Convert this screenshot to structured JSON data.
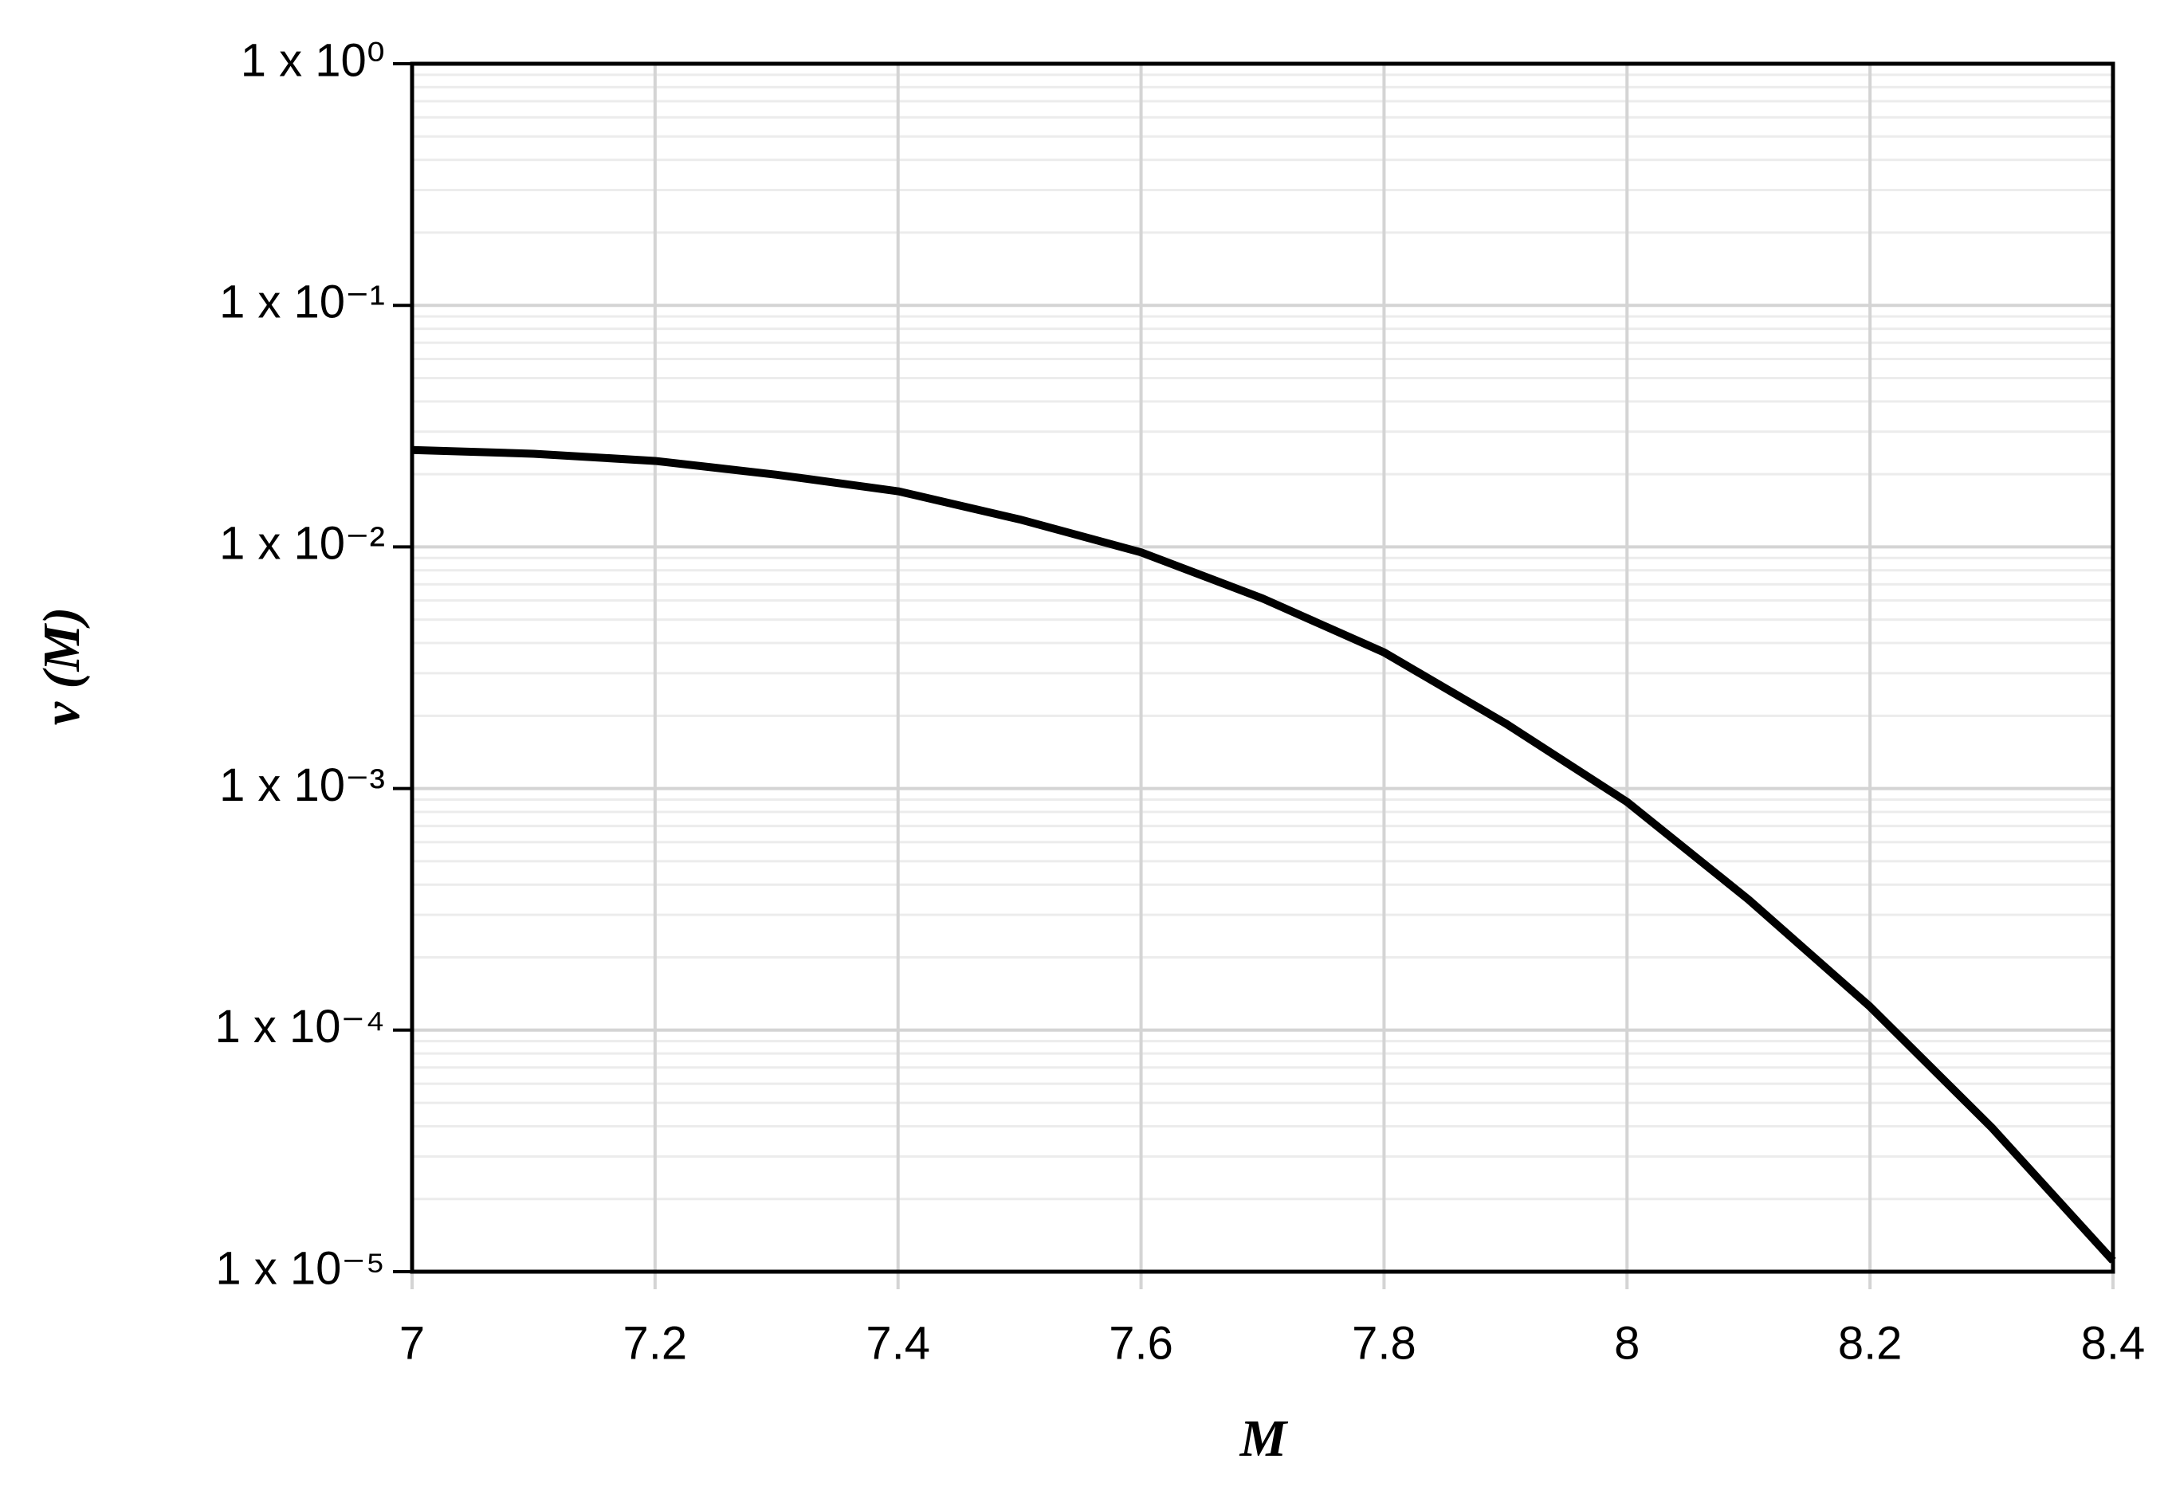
{
  "chart_data": {
    "type": "line",
    "x_label": "M",
    "y_label": "v (M)",
    "x": [
      7,
      7.1,
      7.2,
      7.3,
      7.4,
      7.5,
      7.6,
      7.7,
      7.8,
      7.9,
      8,
      8.1,
      8.2,
      8.3,
      8.4
    ],
    "series": [
      {
        "name": "v (M)",
        "color": "#000000",
        "values": [
          0.0252,
          0.0243,
          0.0227,
          0.0199,
          0.017,
          0.013,
          0.0095,
          0.00612,
          0.00366,
          0.00186,
          0.00088,
          0.000347,
          0.000125,
          3.96e-05,
          1.11e-05
        ]
      }
    ],
    "xlim": [
      7,
      8.4
    ],
    "xticks": [
      7,
      7.2,
      7.4,
      7.6,
      7.8,
      8,
      8.2,
      8.4
    ],
    "ylim": [
      1e-05,
      1
    ],
    "ylog": true,
    "yticks": [
      {
        "value": 1,
        "label": "1 x 10⁰"
      },
      {
        "value": 0.1,
        "label": "1 x 10⁻¹"
      },
      {
        "value": 0.01,
        "label": "1 x 10⁻²"
      },
      {
        "value": 0.001,
        "label": "1 x 10⁻³"
      },
      {
        "value": 0.0001,
        "label": "1 x 10⁻⁴"
      },
      {
        "value": 1e-05,
        "label": "1 x 10⁻⁵"
      }
    ],
    "grid": true,
    "minor_grid": true
  }
}
